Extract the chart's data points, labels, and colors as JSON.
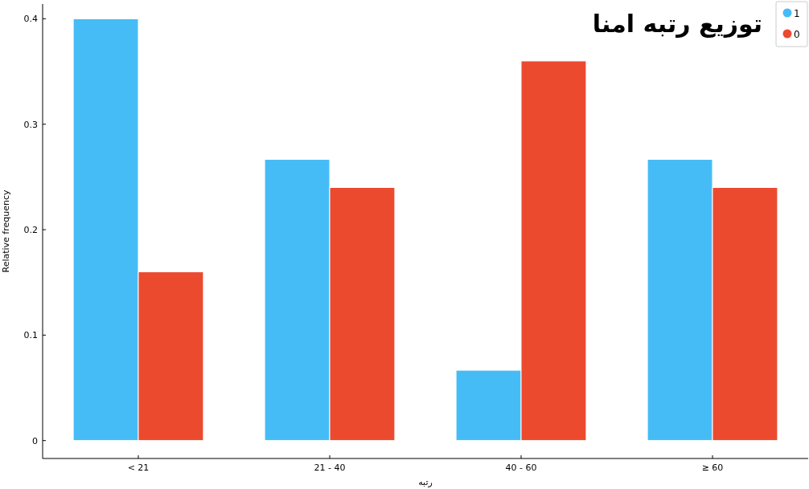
{
  "chart_data": {
    "type": "bar",
    "title": "توزیع رتبه امنا",
    "xlabel": "رتبه",
    "ylabel": "Relative frequency",
    "categories": [
      "< 21",
      "21 - 40",
      "40 - 60",
      "≥ 60"
    ],
    "series": [
      {
        "name": "1",
        "color": "#46bcf7",
        "values": [
          0.4,
          0.2667,
          0.0667,
          0.2667
        ]
      },
      {
        "name": "0",
        "color": "#eb4a2f",
        "values": [
          0.16,
          0.24,
          0.36,
          0.24
        ]
      }
    ],
    "ylim": [
      -0.017,
      0.414
    ],
    "yticks": [
      0,
      0.1,
      0.2,
      0.3,
      0.4
    ],
    "grid": false,
    "legend": "top right"
  }
}
